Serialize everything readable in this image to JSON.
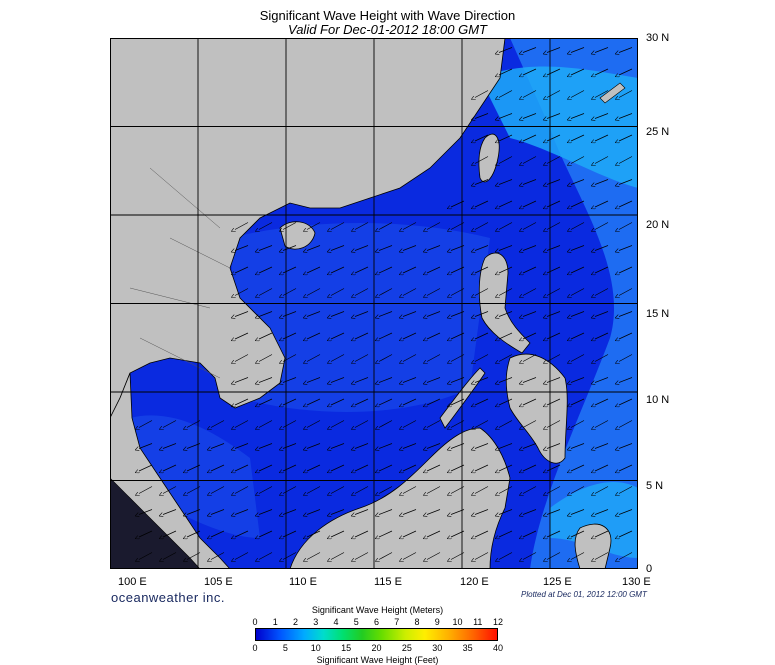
{
  "title": "Significant Wave Height with Wave Direction",
  "subtitle": "Valid For Dec-01-2012 18:00 GMT",
  "lat_labels": [
    "30 N",
    "25 N",
    "20 N",
    "15 N",
    "10 N",
    "5 N",
    "0"
  ],
  "lon_labels": [
    "100 E",
    "105 E",
    "110 E",
    "115 E",
    "120 E",
    "125 E",
    "130 E"
  ],
  "brand": "oceanweather inc.",
  "plotted": "Plotted at Dec 01, 2012 12:00 GMT",
  "colorbar": {
    "title_meters": "Significant Wave Height (Meters)",
    "title_feet": "Significant Wave Height (Feet)",
    "meters_ticks": [
      "0",
      "1",
      "2",
      "3",
      "4",
      "5",
      "6",
      "7",
      "8",
      "9",
      "10",
      "11",
      "12"
    ],
    "feet_ticks": [
      "0",
      "5",
      "10",
      "15",
      "20",
      "25",
      "30",
      "35",
      "40"
    ]
  },
  "colors": {
    "land": "#c0c0c0",
    "ocean_deep": "#0a2ae0",
    "ocean_mid": "#1e6cf2",
    "ocean_light": "#1faaf8"
  }
}
